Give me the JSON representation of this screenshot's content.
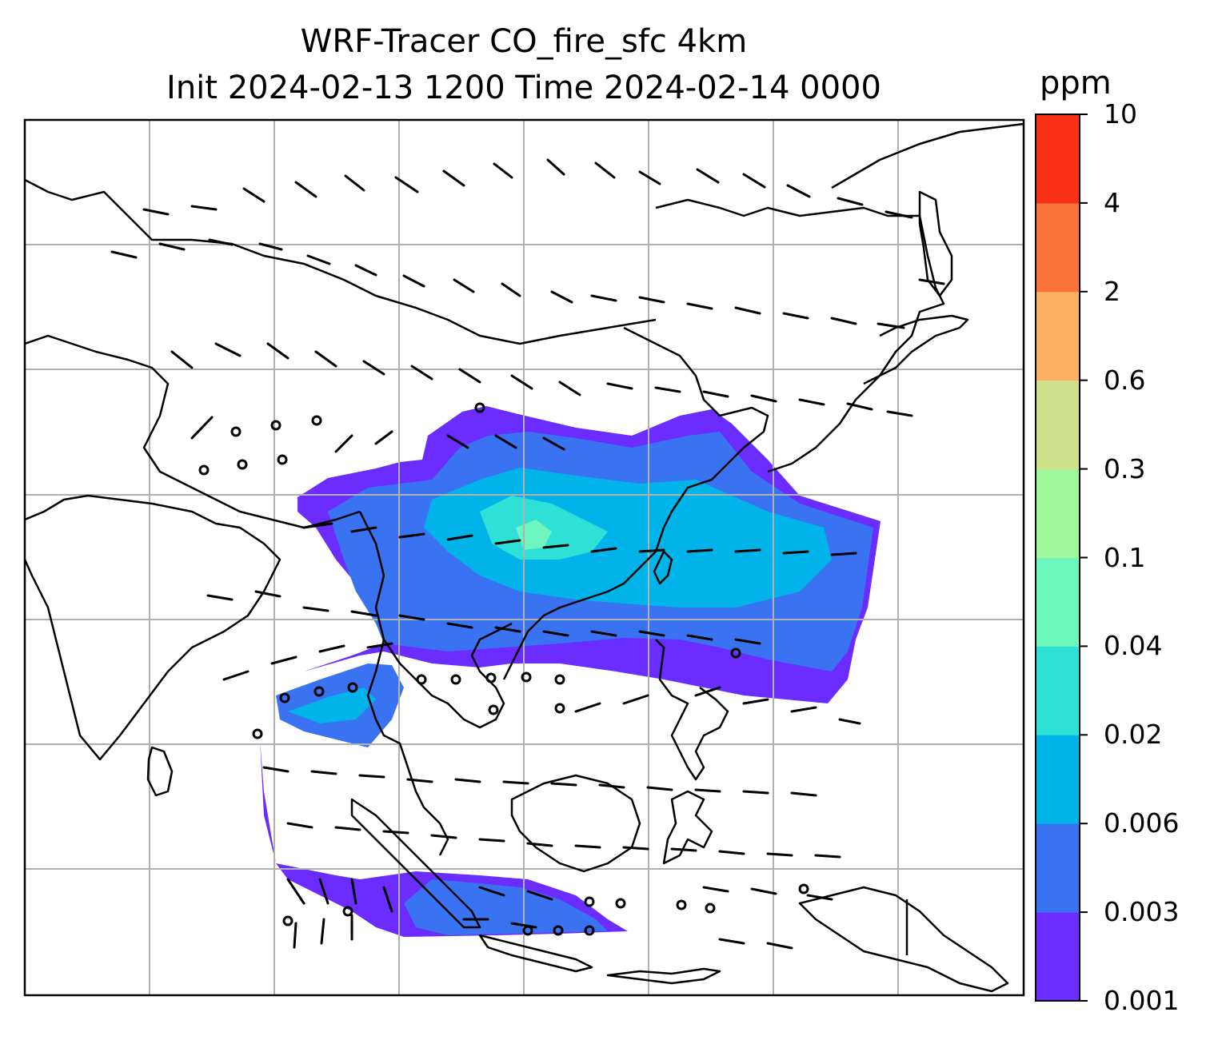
{
  "title": {
    "line1": "WRF-Tracer CO_fire_sfc 4km",
    "line2": "Init 2024-02-13 1200 Time 2024-02-14 0000"
  },
  "colorbar": {
    "unit": "ppm",
    "ticks": [
      "0.001",
      "0.003",
      "0.006",
      "0.02",
      "0.04",
      "0.1",
      "0.3",
      "0.6",
      "2",
      "4",
      "10"
    ],
    "colors": [
      "#6a2cff",
      "#3a73f2",
      "#00b4ea",
      "#2fe0d6",
      "#6df7be",
      "#9ef79b",
      "#cfe08a",
      "#fdb062",
      "#fb733c",
      "#fa3018"
    ]
  },
  "map": {
    "gridlines": true,
    "coastline_color": "#000000",
    "grid_color": "#b0b0b0"
  }
}
